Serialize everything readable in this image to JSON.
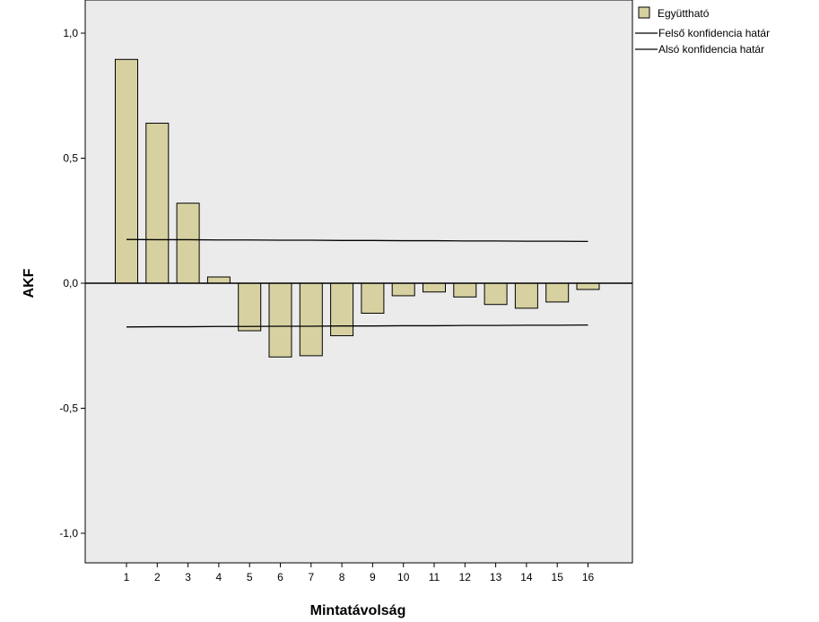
{
  "chart_data": {
    "type": "bar",
    "title": "",
    "xlabel": "Mintatávolság",
    "ylabel": "AKF",
    "ylim": [
      -1.1,
      1.1
    ],
    "y_ticks": [
      "1,0",
      "0,5",
      "0,0",
      "-0,5",
      "-1,0"
    ],
    "y_tick_values": [
      1.0,
      0.5,
      0.0,
      -0.5,
      -1.0
    ],
    "grid": false,
    "legend_position": "top-right, outside plot",
    "categories": [
      "1",
      "2",
      "3",
      "4",
      "5",
      "6",
      "7",
      "8",
      "9",
      "10",
      "11",
      "12",
      "13",
      "14",
      "15",
      "16"
    ],
    "series": [
      {
        "name": "Együttható",
        "type": "bar",
        "color": "#d7d1a1",
        "values": [
          0.895,
          0.64,
          0.32,
          0.025,
          -0.19,
          -0.295,
          -0.29,
          -0.21,
          -0.12,
          -0.05,
          -0.035,
          -0.055,
          -0.085,
          -0.1,
          -0.075,
          -0.025
        ]
      },
      {
        "name": "Felső konfidencia határ",
        "type": "line",
        "color": "#000000",
        "values": [
          0.175,
          0.174,
          0.174,
          0.173,
          0.173,
          0.172,
          0.172,
          0.171,
          0.171,
          0.17,
          0.17,
          0.169,
          0.169,
          0.168,
          0.168,
          0.167
        ]
      },
      {
        "name": "Alsó konfidencia határ",
        "type": "line",
        "color": "#000000",
        "values": [
          -0.175,
          -0.174,
          -0.174,
          -0.173,
          -0.173,
          -0.172,
          -0.172,
          -0.171,
          -0.171,
          -0.17,
          -0.17,
          -0.169,
          -0.169,
          -0.168,
          -0.168,
          -0.167
        ]
      }
    ],
    "colors": {
      "plot_background": "#ebebeb",
      "bar_fill": "#d7d1a1",
      "bar_stroke": "#000000"
    }
  }
}
